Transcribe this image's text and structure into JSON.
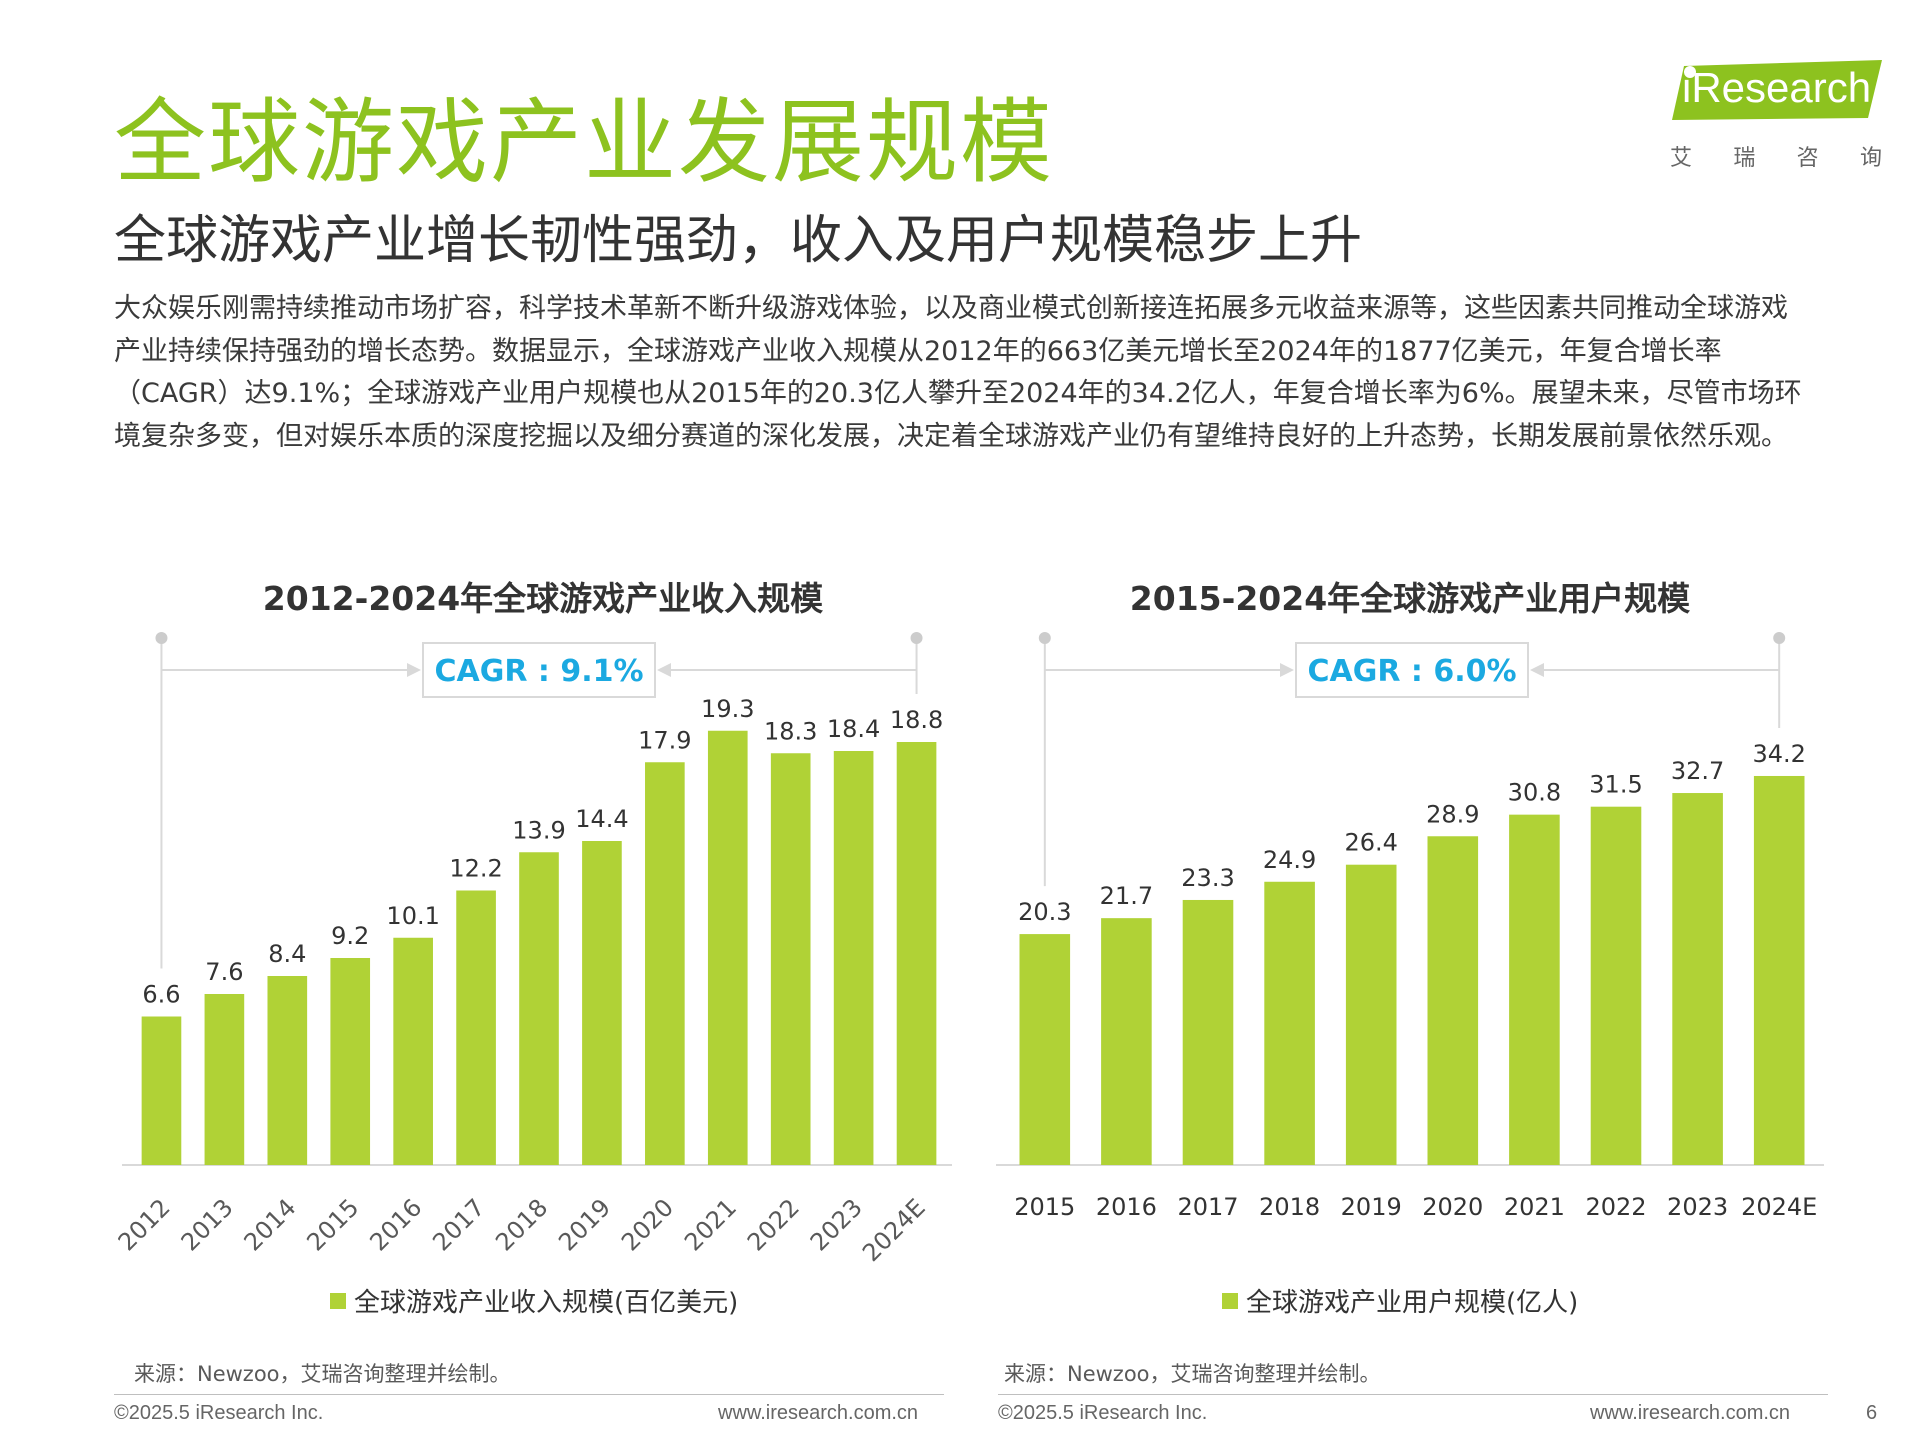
{
  "logo": {
    "word": "iResearch",
    "cn": [
      "艾",
      "瑞",
      "咨",
      "询"
    ]
  },
  "title": "全球游戏产业发展规模",
  "subtitle": "全球游戏产业增长韧性强劲，收入及用户规模稳步上升",
  "paragraph": "大众娱乐刚需持续推动市场扩容，科学技术革新不断升级游戏体验，以及商业模式创新接连拓展多元收益来源等，这些因素共同推动全球游戏产业持续保持强劲的增长态势。数据显示，全球游戏产业收入规模从2012年的663亿美元增长至2024年的1877亿美元，年复合增长率（CAGR）达9.1%；全球游戏产业用户规模也从2015年的20.3亿人攀升至2024年的34.2亿人，年复合增长率为6%。展望未来，尽管市场环境复杂多变，但对娱乐本质的深度挖掘以及细分赛道的深化发展，决定着全球游戏产业仍有望维持良好的上升态势，长期发展前景依然乐观。",
  "colors": {
    "accent": "#8dc21f",
    "bar": "#b0d236",
    "cagr": "#1ba9e1"
  },
  "chart_data": [
    {
      "type": "bar",
      "title": "2012-2024年全球游戏产业收入规模",
      "categories": [
        "2012",
        "2013",
        "2014",
        "2015",
        "2016",
        "2017",
        "2018",
        "2019",
        "2020",
        "2021",
        "2022",
        "2023",
        "2024E"
      ],
      "series": [
        {
          "name": "全球游戏产业收入规模(百亿美元)",
          "values": [
            6.6,
            7.6,
            8.4,
            9.2,
            10.1,
            12.2,
            13.9,
            14.4,
            17.9,
            19.3,
            18.3,
            18.4,
            18.8
          ]
        }
      ],
      "cagr_label": "CAGR : 9.1%",
      "ylim": [
        0,
        22
      ],
      "xlabel": "",
      "ylabel": "",
      "legend_position": "bottom",
      "grid": false
    },
    {
      "type": "bar",
      "title": "2015-2024年全球游戏产业用户规模",
      "categories": [
        "2015",
        "2016",
        "2017",
        "2018",
        "2019",
        "2020",
        "2021",
        "2022",
        "2023",
        "2024E"
      ],
      "series": [
        {
          "name": "全球游戏产业用户规模(亿人)",
          "values": [
            20.3,
            21.7,
            23.3,
            24.9,
            26.4,
            28.9,
            30.8,
            31.5,
            32.7,
            34.2
          ]
        }
      ],
      "cagr_label": "CAGR : 6.0%",
      "ylim": [
        0,
        40
      ],
      "xlabel": "",
      "ylabel": "",
      "legend_position": "bottom",
      "grid": false
    }
  ],
  "source": "来源：Newzoo，艾瑞咨询整理并绘制。",
  "footer": {
    "copyright": "©2025.5 iResearch Inc.",
    "website": "www.iresearch.com.cn",
    "page_number": "6"
  }
}
